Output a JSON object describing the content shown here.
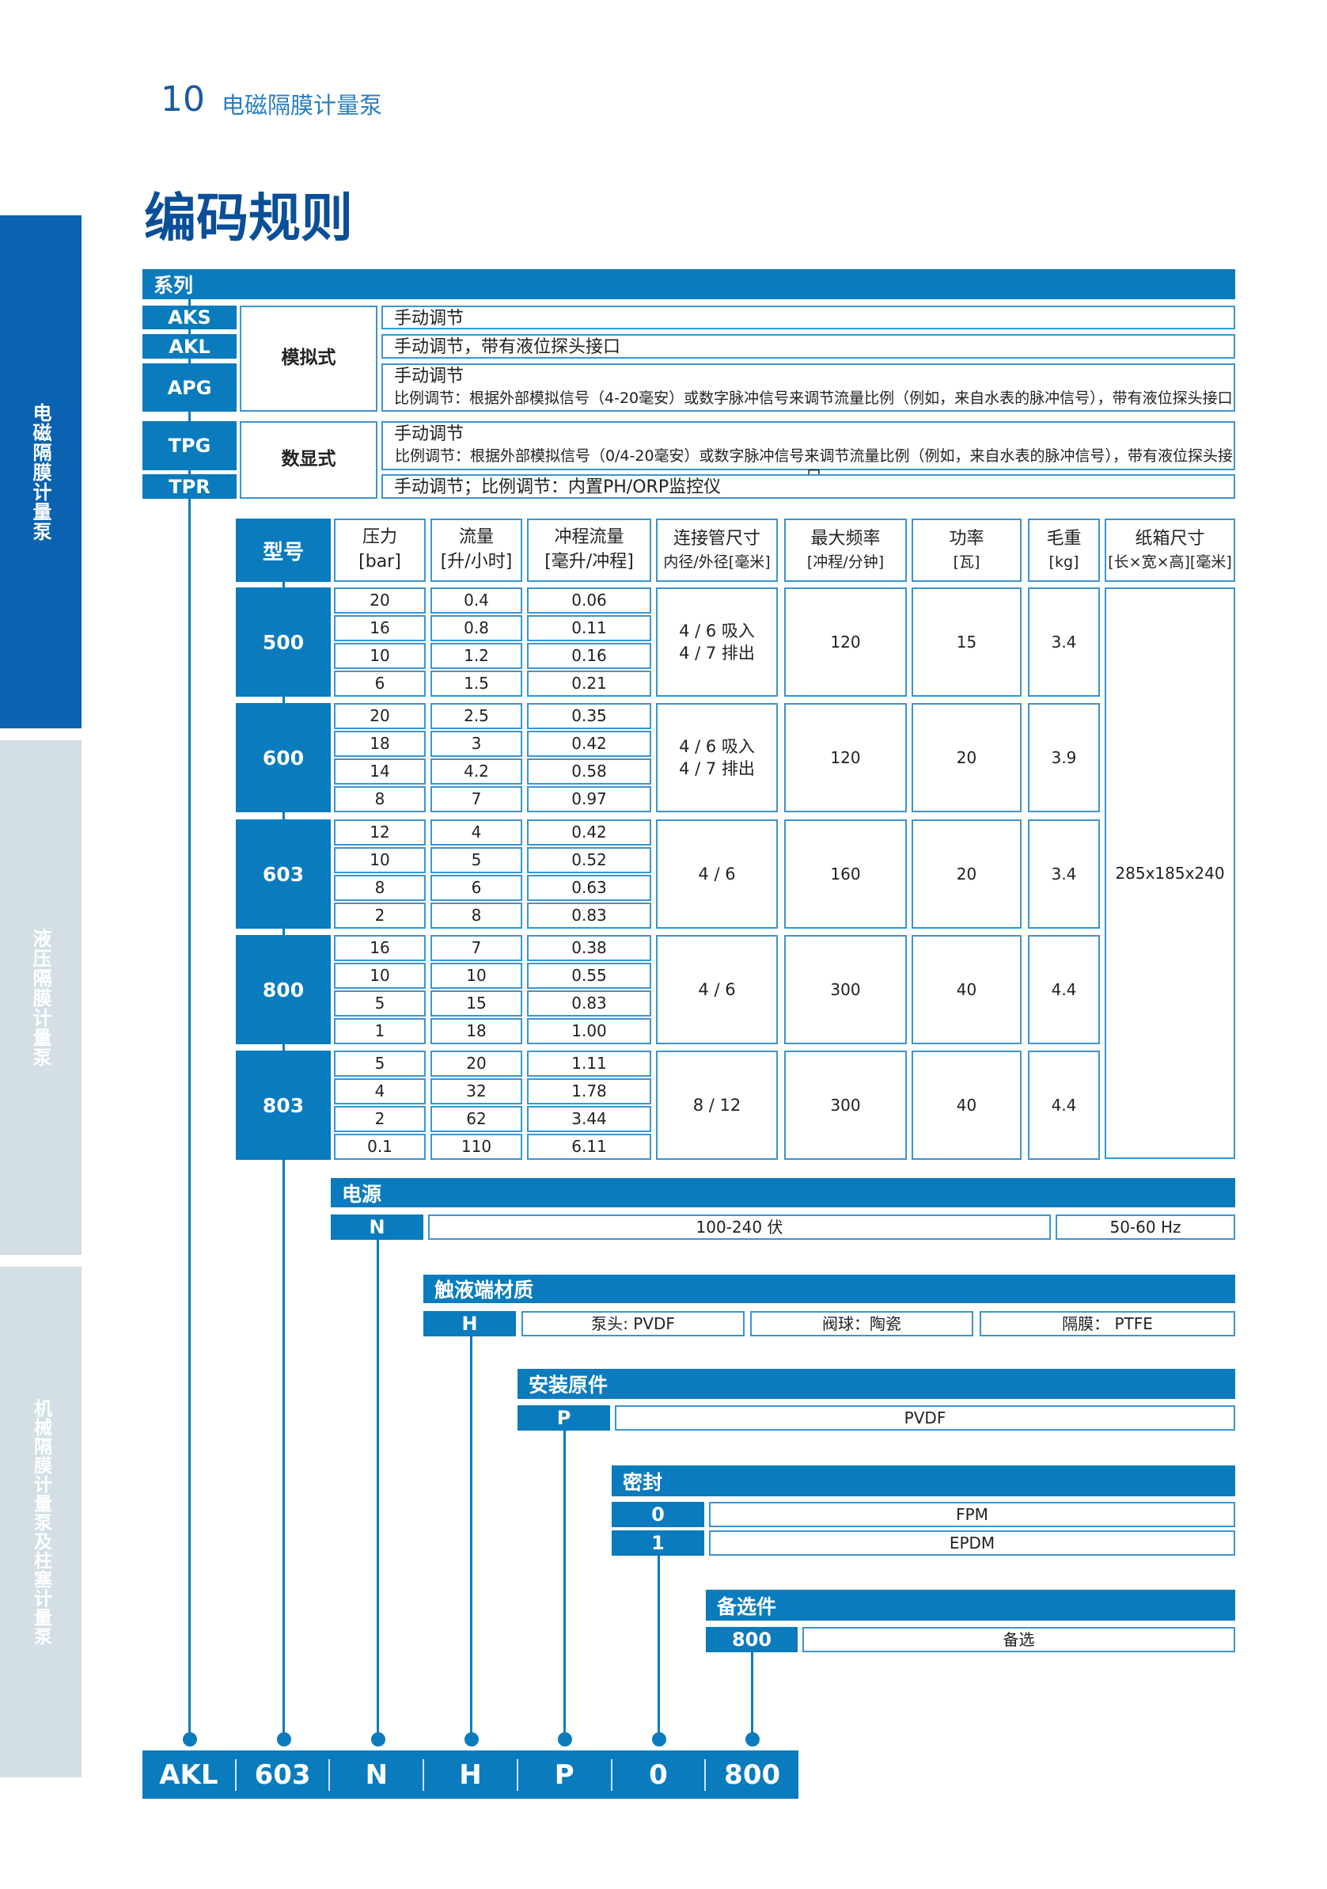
{
  "header": {
    "page_number": "10",
    "section": "电磁隔膜计量泵"
  },
  "title": "编码规则",
  "sidebar": {
    "items": [
      {
        "label": "电磁隔膜计量泵",
        "active": true
      },
      {
        "label": "液压隔膜计量泵",
        "active": false
      },
      {
        "label": "机械隔膜计量泵及柱塞计量泵",
        "active": false
      }
    ]
  },
  "colors": {
    "primary": "#0a7bbd",
    "title": "#0a4f97",
    "sidebar_active": "#0a62b0",
    "sidebar_inactive": "#d3dee5"
  },
  "series": {
    "title": "系列",
    "codes": [
      "AKS",
      "AKL",
      "APG",
      "TPG",
      "TPR"
    ],
    "modes": [
      "模拟式",
      "数显式"
    ],
    "desc": {
      "aks": "手动调节",
      "akl": "手动调节，带有液位探头接口",
      "apg_1": "手动调节",
      "apg_2": "比例调节：根据外部模拟信号（4-20毫安）或数字脉冲信号来调节流量比例（例如，来自水表的脉冲信号），带有液位探头接口",
      "tpg_1": "手动调节",
      "tpg_2": "比例调节：根据外部模拟信号（0/4-20毫安）或数字脉冲信号来调节流量比例（例如，来自水表的脉冲信号），带有液位探头接口",
      "tpr": "手动调节；比例调节：内置PH/ORP监控仪"
    }
  },
  "table": {
    "headers": [
      [
        "型号"
      ],
      [
        "压力",
        "[bar]"
      ],
      [
        "流量",
        "[升/小时]"
      ],
      [
        "冲程流量",
        "[毫升/冲程]"
      ],
      [
        "连接管尺寸",
        "内径/外径[毫米]"
      ],
      [
        "最大频率",
        "[冲程/分钟]"
      ],
      [
        "功率",
        "[瓦]"
      ],
      [
        "毛重",
        "[kg]"
      ],
      [
        "纸箱尺寸",
        "[长×宽×高][毫米]"
      ]
    ],
    "carton": "285x185x240",
    "models": [
      {
        "model": "500",
        "rows": [
          [
            "20",
            "0.4",
            "0.06"
          ],
          [
            "16",
            "0.8",
            "0.11"
          ],
          [
            "10",
            "1.2",
            "0.16"
          ],
          [
            "6",
            "1.5",
            "0.21"
          ]
        ],
        "connection": "4 / 6 吸入\n4 / 7 排出",
        "frequency": "120",
        "power": "15",
        "weight": "3.4"
      },
      {
        "model": "600",
        "rows": [
          [
            "20",
            "2.5",
            "0.35"
          ],
          [
            "18",
            "3",
            "0.42"
          ],
          [
            "14",
            "4.2",
            "0.58"
          ],
          [
            "8",
            "7",
            "0.97"
          ]
        ],
        "connection": "4 / 6 吸入\n4 / 7 排出",
        "frequency": "120",
        "power": "20",
        "weight": "3.9"
      },
      {
        "model": "603",
        "rows": [
          [
            "12",
            "4",
            "0.42"
          ],
          [
            "10",
            "5",
            "0.52"
          ],
          [
            "8",
            "6",
            "0.63"
          ],
          [
            "2",
            "8",
            "0.83"
          ]
        ],
        "connection": "4 / 6",
        "frequency": "160",
        "power": "20",
        "weight": "3.4"
      },
      {
        "model": "800",
        "rows": [
          [
            "16",
            "7",
            "0.38"
          ],
          [
            "10",
            "10",
            "0.55"
          ],
          [
            "5",
            "15",
            "0.83"
          ],
          [
            "1",
            "18",
            "1.00"
          ]
        ],
        "connection": "4 / 6",
        "frequency": "300",
        "power": "40",
        "weight": "4.4"
      },
      {
        "model": "803",
        "rows": [
          [
            "5",
            "20",
            "1.11"
          ],
          [
            "4",
            "32",
            "1.78"
          ],
          [
            "2",
            "62",
            "3.44"
          ],
          [
            "0.1",
            "110",
            "6.11"
          ]
        ],
        "connection": "8 / 12",
        "frequency": "300",
        "power": "40",
        "weight": "4.4"
      }
    ]
  },
  "power": {
    "title": "电源",
    "code": "N",
    "voltage": "100-240 伏",
    "frequency": "50-60 Hz"
  },
  "material": {
    "title": "触液端材质",
    "code": "H",
    "head": "泵头: PVDF",
    "ball": "阀球：陶瓷",
    "diaphragm": "隔膜： PTFE"
  },
  "install": {
    "title": "安装原件",
    "code": "P",
    "value": "PVDF"
  },
  "seal": {
    "title": "密封",
    "options": [
      {
        "code": "0",
        "value": "FPM"
      },
      {
        "code": "1",
        "value": "EPDM"
      }
    ]
  },
  "optional": {
    "title": "备选件",
    "code": "800",
    "value": "备选"
  },
  "example_code": [
    "AKL",
    "603",
    "N",
    "H",
    "P",
    "0",
    "800"
  ]
}
